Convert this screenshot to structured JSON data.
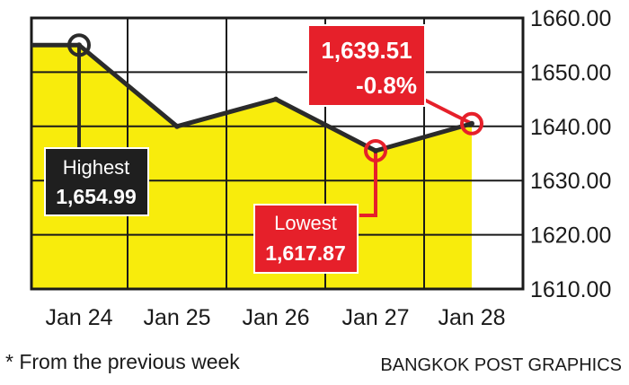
{
  "chart_data": {
    "type": "line",
    "categories": [
      "Jan 24",
      "Jan 25",
      "Jan 26",
      "Jan 27",
      "Jan 28"
    ],
    "series": [
      {
        "values": [
          1654.99,
          1640.0,
          1645.0,
          1635.5,
          1640.5
        ]
      }
    ],
    "ylim": [
      1610,
      1660
    ],
    "yticks": [
      "1610.00",
      "1620.00",
      "1630.00",
      "1640.00",
      "1650.00",
      "1660.00"
    ],
    "grid": true,
    "annotations": {
      "highest": {
        "label": "Highest",
        "value": "1,654.99"
      },
      "lowest": {
        "label": "Lowest",
        "value": "1,617.87"
      },
      "last": {
        "value": "1,639.51",
        "change": "-0.8%"
      }
    }
  },
  "footnote": "* From the previous week",
  "credit": "BANGKOK POST GRAPHICS",
  "colors": {
    "area": "#f8ec0c",
    "line": "#2b2b2b",
    "grid": "#1a1a1a",
    "highlight": "#e6202a",
    "dark_box": "#1f1f1f"
  }
}
